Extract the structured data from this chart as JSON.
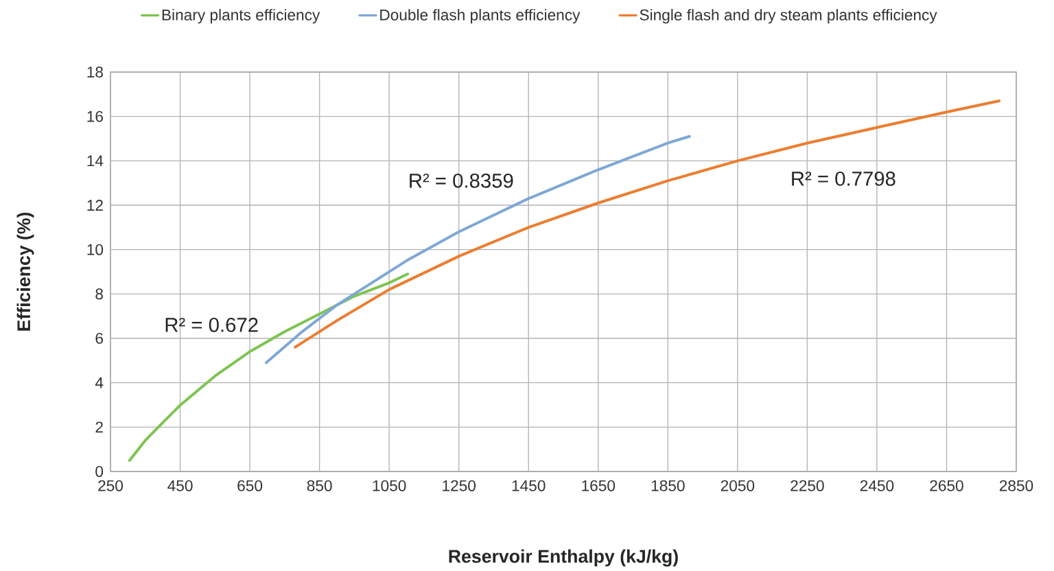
{
  "chart_data": {
    "type": "line",
    "xlabel": "Reservoir Enthalpy (kJ/kg)",
    "ylabel": "Efficiency (%)",
    "xlim": [
      250,
      2850
    ],
    "xticks": [
      250,
      450,
      650,
      850,
      1050,
      1250,
      1450,
      1650,
      1850,
      2050,
      2250,
      2450,
      2650,
      2850
    ],
    "ylim": [
      0,
      18
    ],
    "yticks": [
      0,
      2,
      4,
      6,
      8,
      10,
      12,
      14,
      16,
      18
    ],
    "grid": true,
    "legend": "top",
    "marker": "none",
    "line_style": "solid",
    "series": [
      {
        "name": "Binary plants efficiency",
        "color": "#7dc451",
        "x": [
          305,
          350,
          400,
          451,
          550,
          650,
          750,
          850,
          950,
          1050,
          1103
        ],
        "values": [
          0.5,
          1.4,
          2.2,
          3.0,
          4.3,
          5.4,
          6.3,
          7.1,
          7.9,
          8.5,
          8.9
        ]
      },
      {
        "name": "Double flash plants efficiency",
        "color": "#7fa7d6",
        "x": [
          697,
          800,
          900,
          1000,
          1100,
          1250,
          1450,
          1650,
          1850,
          1912
        ],
        "values": [
          4.9,
          6.3,
          7.5,
          8.5,
          9.5,
          10.8,
          12.3,
          13.6,
          14.8,
          15.1
        ]
      },
      {
        "name": "Single flash and dry steam plants efficiency",
        "color": "#ed7d31",
        "x": [
          780,
          900,
          1050,
          1250,
          1450,
          1650,
          1850,
          2050,
          2250,
          2450,
          2650,
          2801
        ],
        "values": [
          5.6,
          6.8,
          8.2,
          9.7,
          11.0,
          12.1,
          13.1,
          14.0,
          14.8,
          15.5,
          16.2,
          16.7
        ]
      }
    ],
    "annotations": [
      "R² = 0.672",
      "R² = 0.8359",
      "R² = 0.7798"
    ]
  }
}
